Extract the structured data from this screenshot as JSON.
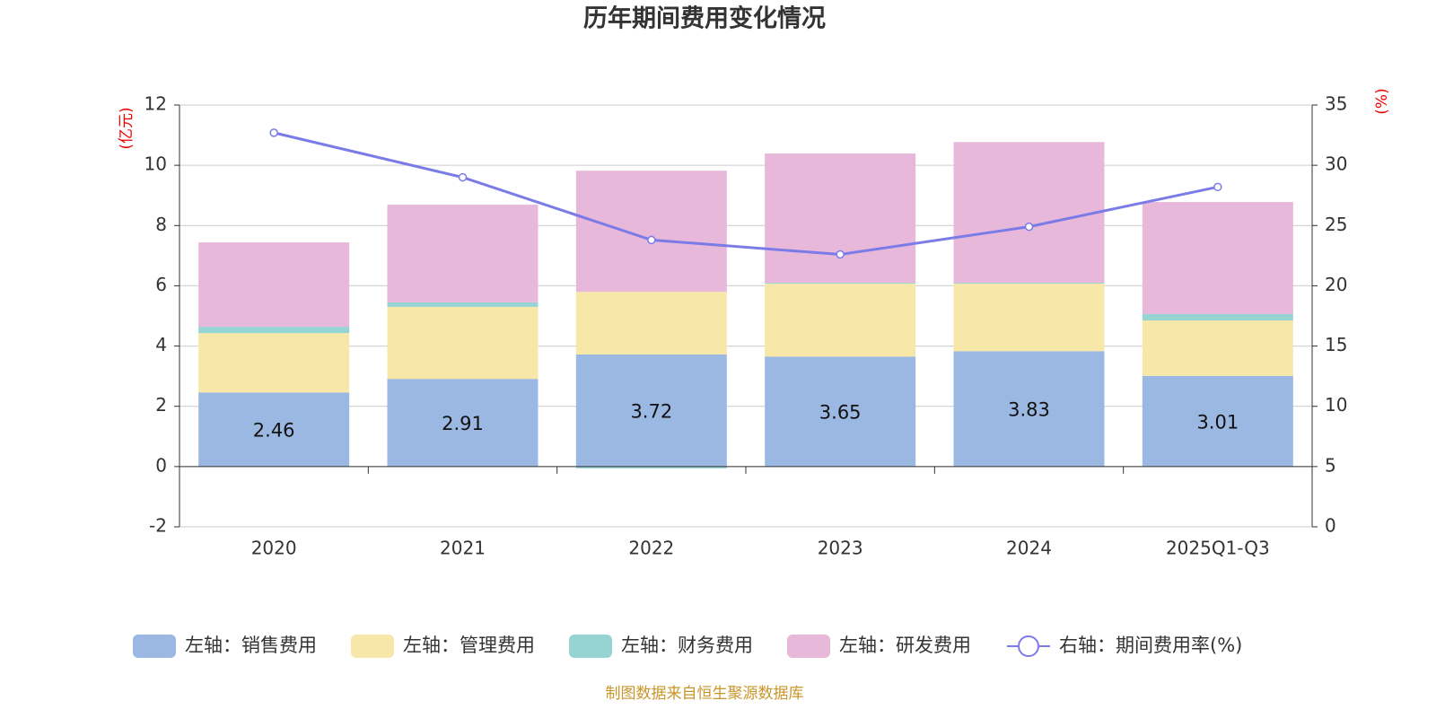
{
  "chart_data": {
    "type": "stacked-bar-line",
    "title": "历年期间费用变化情况",
    "y_label": "(亿元)",
    "y2_label": "(%)",
    "source": "制图数据来自恒生聚源数据库",
    "categories": [
      "2020",
      "2021",
      "2022",
      "2023",
      "2024",
      "2025Q1-Q3"
    ],
    "series": [
      {
        "name": "左轴：销售费用",
        "type": "bar",
        "color": "#9bb8e2",
        "values": [
          2.46,
          2.91,
          3.72,
          3.65,
          3.83,
          3.01
        ],
        "show_labels": true
      },
      {
        "name": "左轴：管理费用",
        "type": "bar",
        "color": "#f7e7a8",
        "values": [
          1.97,
          2.39,
          2.08,
          2.42,
          2.24,
          1.84
        ]
      },
      {
        "name": "左轴：财务费用",
        "type": "bar",
        "color": "#96d4d4",
        "values": [
          0.21,
          0.15,
          -0.06,
          0.03,
          0.03,
          0.21
        ]
      },
      {
        "name": "左轴：研发费用",
        "type": "bar",
        "color": "#e7b8d9",
        "values": [
          2.8,
          3.24,
          4.02,
          4.29,
          4.67,
          3.72
        ]
      },
      {
        "name": "右轴：期间费用率(%)",
        "type": "line",
        "axis": "y2",
        "color": "#7b7be8",
        "values": [
          32.7,
          29.0,
          23.8,
          22.6,
          24.9,
          28.2
        ]
      }
    ],
    "ylim": [
      -2,
      12
    ],
    "yticks": [
      -2,
      0,
      2,
      4,
      6,
      8,
      10,
      12
    ],
    "y2lim": [
      0,
      35
    ],
    "y2ticks": [
      0,
      5,
      10,
      15,
      20,
      25,
      30,
      35
    ],
    "grid": true
  }
}
